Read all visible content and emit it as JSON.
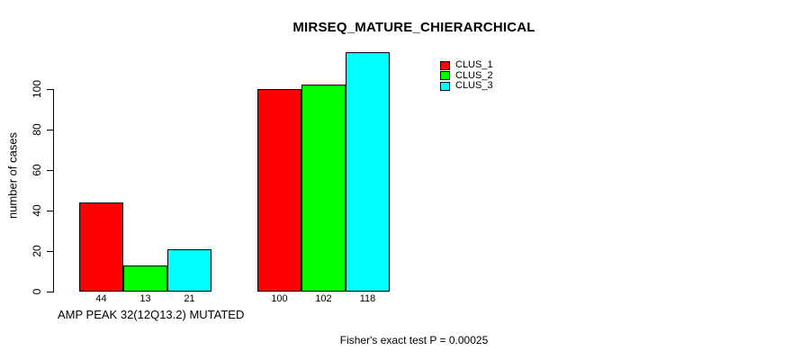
{
  "title": "MIRSEQ_MATURE_CHIERARCHICAL",
  "footnote": "Fisher's exact test P = 0.00025",
  "chart_data": {
    "type": "bar",
    "title": "MIRSEQ_MATURE_CHIERARCHICAL",
    "xlabel": "AMP PEAK 32(12Q13.2) MUTATED",
    "ylabel": "number of cases",
    "annotation": "Fisher's exact test P = 0.00025",
    "categories": [
      "AMP PEAK 32(12Q13.2) MUTATED",
      ""
    ],
    "series": [
      {
        "name": "CLUS_1",
        "color": "#ff0000",
        "values": [
          44,
          100
        ]
      },
      {
        "name": "CLUS_2",
        "color": "#00ff00",
        "values": [
          13,
          102
        ]
      },
      {
        "name": "CLUS_3",
        "color": "#00ffff",
        "values": [
          21,
          118
        ]
      }
    ],
    "bar_value_labels": [
      [
        44,
        13,
        21
      ],
      [
        100,
        102,
        118
      ]
    ],
    "yticks": [
      0,
      20,
      40,
      60,
      80,
      100
    ],
    "ylim": [
      0,
      118
    ],
    "grid": false,
    "legend_position": "top-right",
    "bar_border_color": "#000000",
    "background_color": "#ffffff",
    "text_color": "#000000"
  }
}
